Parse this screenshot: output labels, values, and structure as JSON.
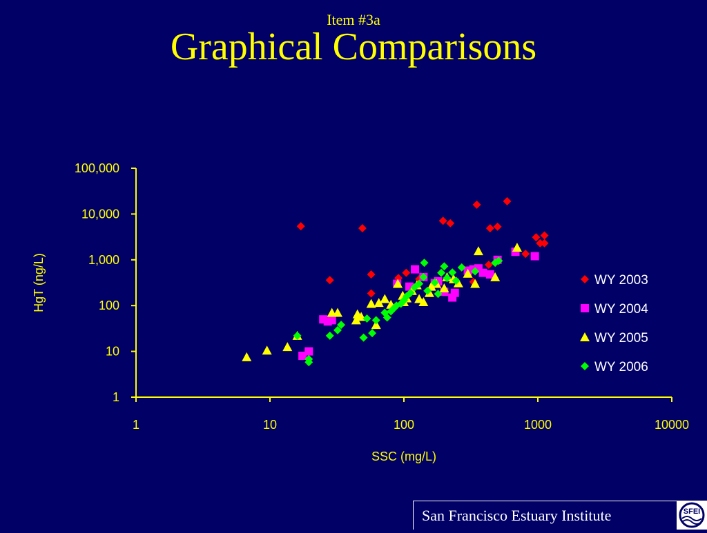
{
  "slide": {
    "item_label": "Item #3a",
    "title": "Graphical Comparisons",
    "footer": "San Francisco Estuary Institute",
    "logo_text": "SFEI"
  },
  "colors": {
    "background": "#000066",
    "text": "#ffff00",
    "axis": "#ffff00"
  },
  "chart_data": {
    "type": "scatter",
    "xlabel": "SSC (mg/L)",
    "ylabel": "HgT (ng/L)",
    "xscale": "log",
    "yscale": "log",
    "xlim": [
      1,
      10000
    ],
    "ylim": [
      1,
      100000
    ],
    "xticks": [
      1,
      10,
      100,
      1000,
      10000
    ],
    "xtick_labels": [
      "1",
      "10",
      "100",
      "1000",
      "10000"
    ],
    "yticks": [
      1,
      10,
      100,
      1000,
      10000,
      100000
    ],
    "ytick_labels": [
      "1",
      "10",
      "100",
      "1,000",
      "10,000",
      "100,000"
    ],
    "grid": false,
    "legend_position": "right",
    "series": [
      {
        "name": "WY 2003",
        "marker": "diamond",
        "color": "#ff0000",
        "points": [
          [
            17,
            5400
          ],
          [
            49,
            4900
          ],
          [
            28,
            360
          ],
          [
            57,
            480
          ],
          [
            57,
            185
          ],
          [
            91,
            400
          ],
          [
            104,
            520
          ],
          [
            196,
            7100
          ],
          [
            222,
            6300
          ],
          [
            350,
            16000
          ],
          [
            440,
            4900
          ],
          [
            500,
            5300
          ],
          [
            590,
            19000
          ],
          [
            970,
            3100
          ],
          [
            1040,
            2300
          ],
          [
            1120,
            3400
          ],
          [
            1120,
            2300
          ],
          [
            810,
            1350
          ],
          [
            430,
            780
          ],
          [
            330,
            330
          ],
          [
            130,
            380
          ]
        ]
      },
      {
        "name": "WY 2004",
        "marker": "square",
        "color": "#ff00ff",
        "points": [
          [
            17.5,
            8
          ],
          [
            19.5,
            10
          ],
          [
            25,
            50
          ],
          [
            27,
            45
          ],
          [
            29,
            48
          ],
          [
            89,
            300
          ],
          [
            121,
            620
          ],
          [
            140,
            420
          ],
          [
            180,
            340
          ],
          [
            200,
            200
          ],
          [
            230,
            150
          ],
          [
            240,
            190
          ],
          [
            300,
            580
          ],
          [
            330,
            620
          ],
          [
            360,
            650
          ],
          [
            390,
            520
          ],
          [
            440,
            480
          ],
          [
            500,
            1000
          ],
          [
            950,
            1200
          ],
          [
            680,
            1500
          ],
          [
            170,
            310
          ],
          [
            110,
            260
          ]
        ]
      },
      {
        "name": "WY 2005",
        "marker": "triangle",
        "color": "#ffff00",
        "points": [
          [
            6.7,
            7.5
          ],
          [
            9.5,
            10.5
          ],
          [
            13.5,
            12.5
          ],
          [
            16,
            22
          ],
          [
            29,
            70
          ],
          [
            32,
            70
          ],
          [
            44,
            48
          ],
          [
            45,
            65
          ],
          [
            48,
            57
          ],
          [
            57,
            110
          ],
          [
            62,
            38
          ],
          [
            65,
            115
          ],
          [
            72,
            140
          ],
          [
            80,
            105
          ],
          [
            90,
            300
          ],
          [
            98,
            165
          ],
          [
            105,
            145
          ],
          [
            115,
            210
          ],
          [
            125,
            280
          ],
          [
            130,
            140
          ],
          [
            140,
            120
          ],
          [
            155,
            190
          ],
          [
            175,
            300
          ],
          [
            210,
            420
          ],
          [
            235,
            380
          ],
          [
            255,
            310
          ],
          [
            300,
            500
          ],
          [
            340,
            300
          ],
          [
            360,
            1550
          ],
          [
            480,
            420
          ],
          [
            700,
            1850
          ],
          [
            200,
            240
          ],
          [
            160,
            260
          ],
          [
            100,
            120
          ]
        ]
      },
      {
        "name": "WY 2006",
        "marker": "diamond",
        "color": "#00ff00",
        "points": [
          [
            16,
            22
          ],
          [
            19.5,
            5.8
          ],
          [
            19.5,
            6.8
          ],
          [
            28,
            22
          ],
          [
            32,
            29
          ],
          [
            34,
            38
          ],
          [
            50,
            20
          ],
          [
            53,
            52
          ],
          [
            58,
            25
          ],
          [
            72,
            70
          ],
          [
            75,
            55
          ],
          [
            80,
            75
          ],
          [
            85,
            90
          ],
          [
            95,
            110
          ],
          [
            100,
            130
          ],
          [
            105,
            160
          ],
          [
            112,
            190
          ],
          [
            120,
            250
          ],
          [
            130,
            300
          ],
          [
            140,
            420
          ],
          [
            142,
            860
          ],
          [
            150,
            210
          ],
          [
            170,
            320
          ],
          [
            180,
            180
          ],
          [
            190,
            520
          ],
          [
            200,
            720
          ],
          [
            210,
            400
          ],
          [
            230,
            530
          ],
          [
            245,
            350
          ],
          [
            270,
            680
          ],
          [
            340,
            560
          ],
          [
            480,
            860
          ],
          [
            510,
            950
          ],
          [
            88,
            100
          ],
          [
            62,
            48
          ]
        ]
      }
    ]
  }
}
